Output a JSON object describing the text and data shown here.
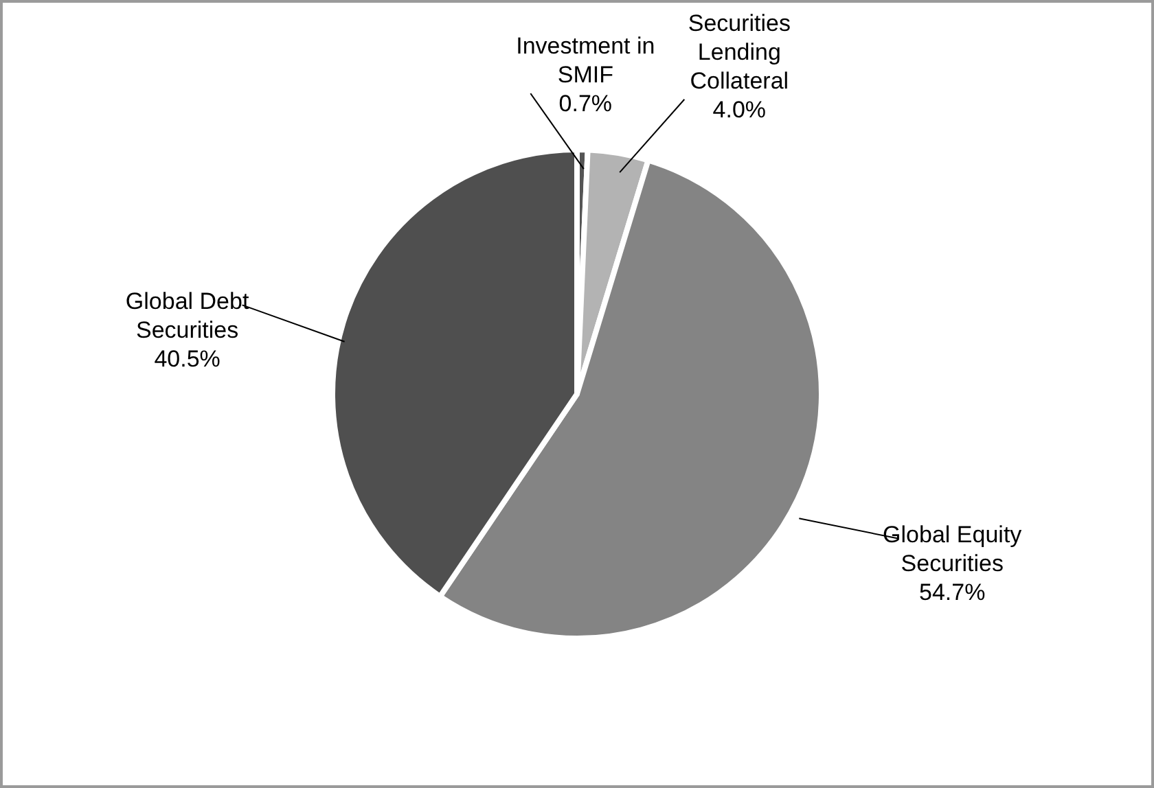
{
  "chart_data": {
    "type": "pie",
    "categories": [
      "Investment in SMIF",
      "Securities Lending Collateral",
      "Global Equity Securities",
      "Global Debt Securities"
    ],
    "values": [
      0.7,
      4.0,
      54.7,
      40.5
    ],
    "colors": [
      "#555555",
      "#b3b3b3",
      "#848484",
      "#4f4f4f"
    ],
    "value_labels": [
      "0.7%",
      "4.0%",
      "54.7%",
      "40.5%"
    ]
  }
}
